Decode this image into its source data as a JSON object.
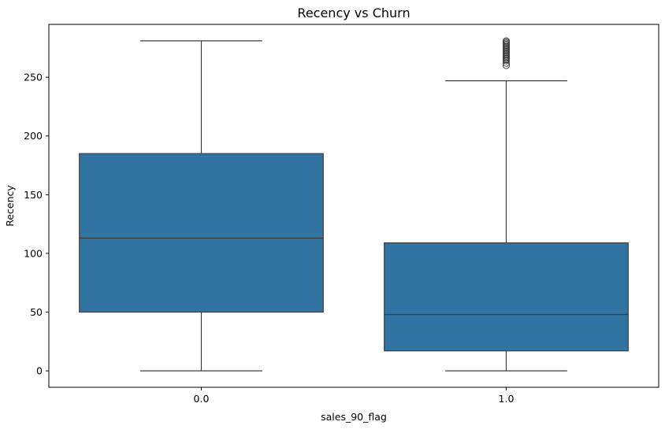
{
  "chart_data": {
    "type": "box",
    "title": "Recency vs Churn",
    "xlabel": "sales_90_flag",
    "ylabel": "Recency",
    "categories": [
      "0.0",
      "1.0"
    ],
    "ylim": [
      -14,
      295
    ],
    "yticks": [
      0,
      50,
      100,
      150,
      200,
      250
    ],
    "color": "#3274a1",
    "edge_color": "#3f3f3f",
    "grid": false,
    "legend": "none",
    "boxes": [
      {
        "category": "0.0",
        "whisker_low": 0,
        "q1": 50,
        "median": 113,
        "q3": 185,
        "whisker_high": 281,
        "outliers": []
      },
      {
        "category": "1.0",
        "whisker_low": 0,
        "q1": 17,
        "median": 48,
        "q3": 109,
        "whisker_high": 247,
        "outliers": [
          260,
          262,
          264,
          265,
          266,
          267,
          268,
          269,
          270,
          271,
          272,
          273,
          274,
          275,
          276,
          277,
          278,
          279,
          280,
          281
        ]
      }
    ]
  }
}
